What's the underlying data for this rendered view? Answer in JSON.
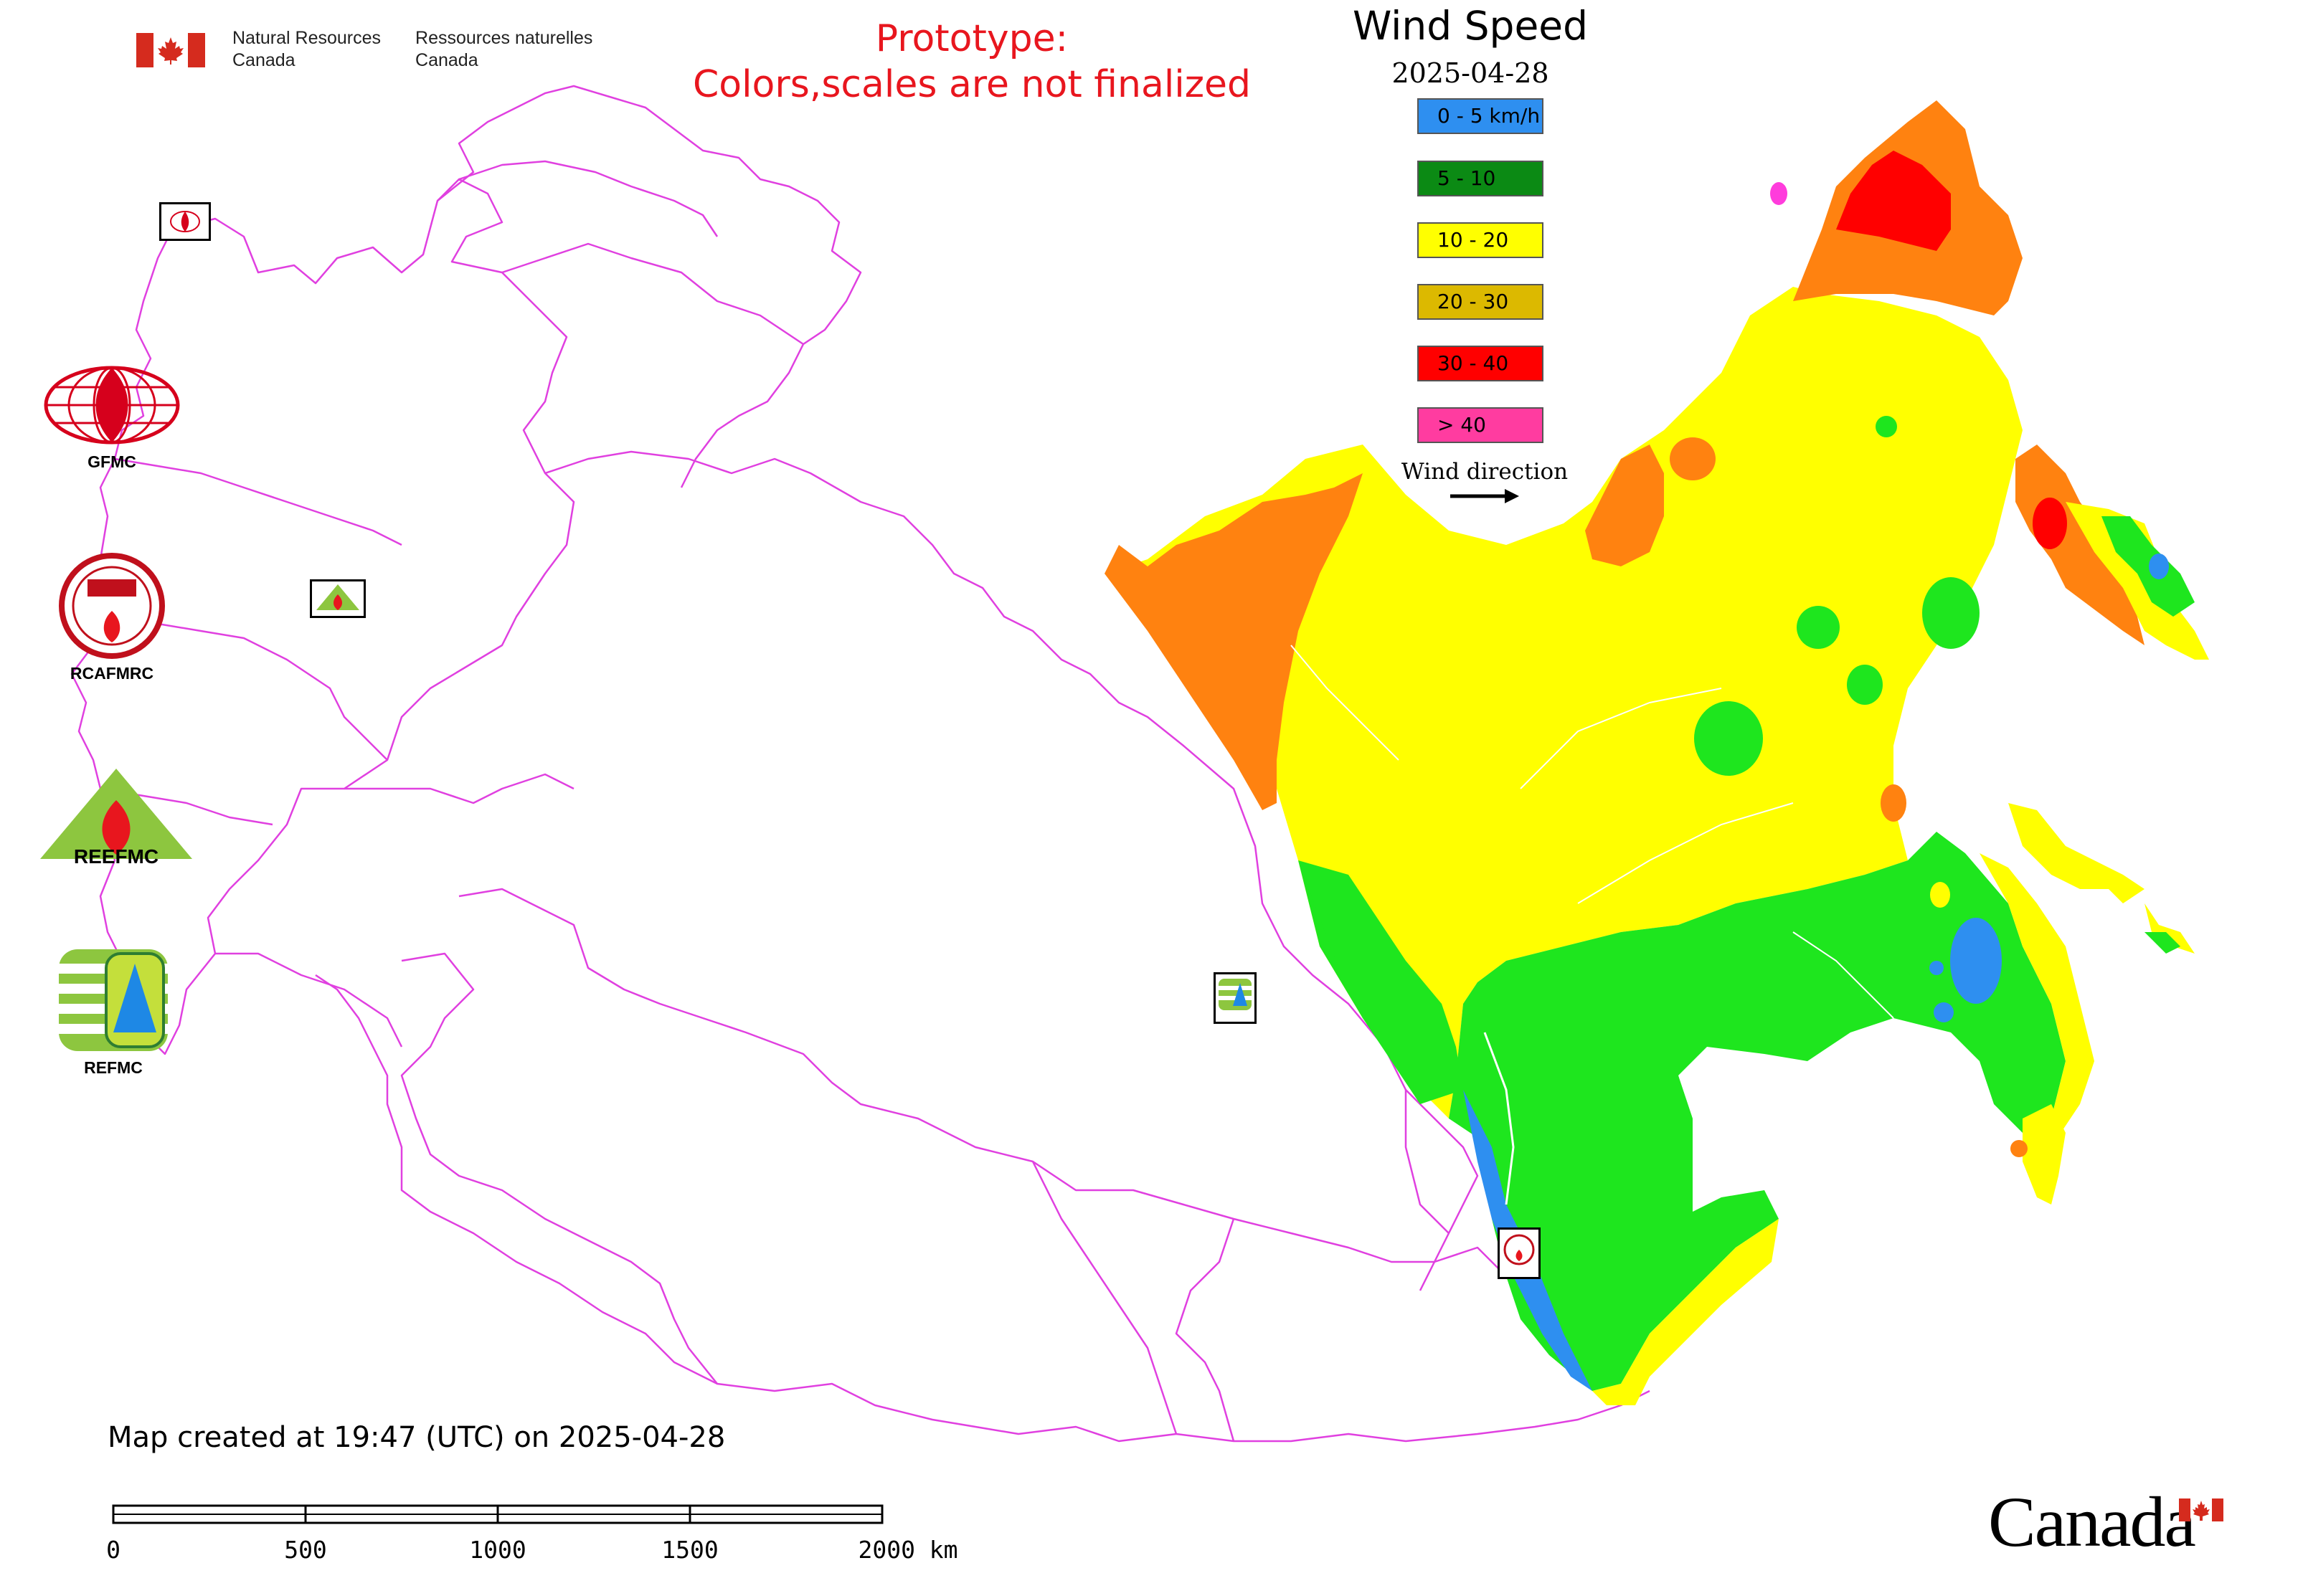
{
  "header": {
    "department_en": [
      "Natural Resources",
      "Canada"
    ],
    "department_fr": [
      "Ressources naturelles",
      "Canada"
    ],
    "notice_line1": "Prototype:",
    "notice_line2": "Colors,scales are not finalized"
  },
  "legend": {
    "title": "Wind Speed",
    "date": "2025-04-28",
    "classes": [
      {
        "label": "0 - 5 km/h",
        "color": "#2e8ff0"
      },
      {
        "label": "5 - 10",
        "color": "#0b8a14"
      },
      {
        "label": "10 - 20",
        "color": "#ffff00"
      },
      {
        "label": "20 - 30",
        "color": "#dcb900"
      },
      {
        "label": "30 - 40",
        "color": "#ff0000"
      },
      {
        "label": "> 40",
        "color": "#ff3ca0"
      }
    ],
    "wind_direction_label": "Wind direction"
  },
  "map_fill_colors": {
    "green": "#1ee61e",
    "blue": "#2e8ff0",
    "yellow": "#ffff00",
    "orange": "#ff8210",
    "red": "#ff0000",
    "magenta": "#ff3cdc",
    "borders": "#e040e0"
  },
  "logos": [
    {
      "name": "GFMC",
      "label": "GFMC"
    },
    {
      "name": "RCAFMRC",
      "label": "RCAFMRC"
    },
    {
      "name": "REEFMC",
      "label": "REEFMC"
    },
    {
      "name": "REFMC",
      "label": "REFMC"
    }
  ],
  "footer": {
    "created": "Map created at 19:47 (UTC) on 2025-04-28",
    "scale_labels": [
      "0",
      "500",
      "1000",
      "1500",
      "2000 km"
    ]
  },
  "wordmark": "Canada"
}
